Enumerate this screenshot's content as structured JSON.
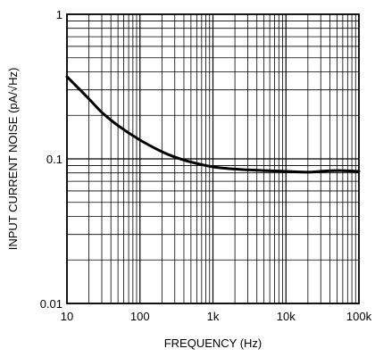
{
  "chart_data": {
    "type": "line",
    "xlabel": "FREQUENCY (Hz)",
    "ylabel": "INPUT CURRENT NOISE (pA/√Hz)",
    "x_scale": "log",
    "y_scale": "log",
    "xlim": [
      10,
      100000
    ],
    "ylim": [
      0.01,
      1
    ],
    "grid": true,
    "x_ticks": [
      10,
      100,
      1000,
      10000,
      100000
    ],
    "x_tick_labels": [
      "10",
      "100",
      "1k",
      "10k",
      "100k"
    ],
    "y_ticks": [
      0.01,
      0.1,
      1
    ],
    "y_tick_labels": [
      "0.01",
      "0.1",
      "1"
    ],
    "series": [
      {
        "x": [
          10,
          20,
          30,
          50,
          100,
          200,
          300,
          500,
          1000,
          2000,
          3000,
          5000,
          10000,
          20000,
          30000,
          50000,
          100000
        ],
        "y": [
          0.37,
          0.26,
          0.21,
          0.17,
          0.135,
          0.112,
          0.103,
          0.095,
          0.088,
          0.085,
          0.084,
          0.083,
          0.082,
          0.081,
          0.082,
          0.083,
          0.082
        ]
      }
    ],
    "colors": {
      "line": "#000000",
      "grid": "#000000",
      "background": "#ffffff"
    }
  }
}
